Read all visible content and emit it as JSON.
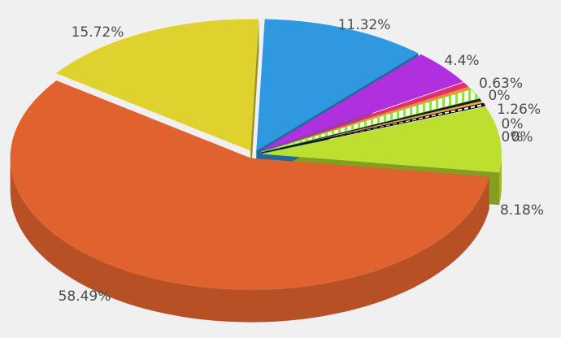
{
  "chart_data": {
    "type": "pie",
    "three_d": true,
    "legend": "none",
    "title": "",
    "slices": [
      {
        "label": "11.32%",
        "value": 11.32,
        "color": "#2e98e0",
        "exploded": true
      },
      {
        "label": "4.4%",
        "value": 4.4,
        "color": "#b030e0",
        "exploded": true
      },
      {
        "label": "0.63%",
        "value": 0.63,
        "color": "#e0306e",
        "exploded": true
      },
      {
        "label": "0%",
        "value": 0,
        "color": "#ff8a22",
        "exploded": true
      },
      {
        "label": "1.26%",
        "value": 1.26,
        "color": "#8ee04a",
        "exploded": true,
        "pattern": "hatch"
      },
      {
        "label": "0%",
        "value": 0,
        "color": "#1a1a1a",
        "exploded": true
      },
      {
        "label": "0%",
        "value": 0,
        "color": "#e8a832",
        "exploded": true
      },
      {
        "label": "0%",
        "value": 0,
        "color": "#000000",
        "exploded": true,
        "pattern": "hatch"
      },
      {
        "label": "8.18%",
        "value": 8.18,
        "color": "#bde030",
        "exploded": true
      },
      {
        "label": "58.49%",
        "value": 58.49,
        "color": "#e0622e",
        "exploded": true
      },
      {
        "label": "15.72%",
        "value": 15.72,
        "color": "#e0d22e",
        "exploded": true
      }
    ]
  }
}
